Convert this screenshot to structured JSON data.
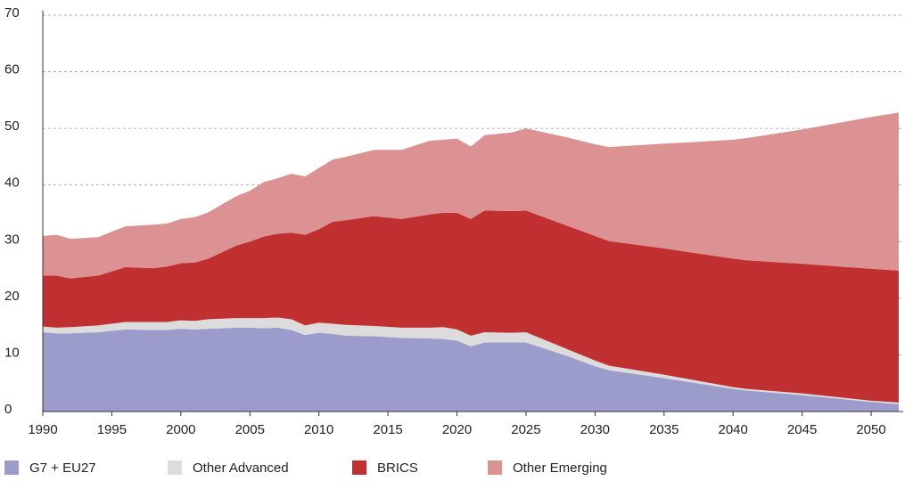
{
  "chart_data": {
    "type": "stacked_area",
    "x": [
      1990,
      1991,
      1992,
      1994,
      1996,
      1998,
      1999,
      2000,
      2001,
      2002,
      2004,
      2005,
      2006,
      2007,
      2008,
      2009,
      2010,
      2011,
      2012,
      2014,
      2016,
      2018,
      2019,
      2020,
      2021,
      2022,
      2024,
      2025,
      2028,
      2030,
      2031,
      2035,
      2040,
      2041,
      2045,
      2050,
      2052
    ],
    "series": [
      {
        "name": "G7 + EU27",
        "color": "#9b9bcc",
        "values": [
          14,
          13.8,
          13.8,
          14,
          14.5,
          14.4,
          14.4,
          14.6,
          14.5,
          14.6,
          14.8,
          14.8,
          14.7,
          14.8,
          14.4,
          13.5,
          13.9,
          13.7,
          13.4,
          13.3,
          13,
          12.9,
          12.8,
          12.5,
          11.5,
          12.2,
          12.2,
          12.2,
          9.8,
          8,
          7.3,
          5.9,
          4,
          3.7,
          2.9,
          1.7,
          1.3
        ]
      },
      {
        "name": "Other Advanced",
        "color": "#dcdcdc",
        "values": [
          1,
          1,
          1.1,
          1.2,
          1.3,
          1.4,
          1.4,
          1.5,
          1.5,
          1.7,
          1.7,
          1.7,
          1.8,
          1.8,
          1.9,
          1.7,
          1.8,
          1.8,
          1.9,
          1.8,
          1.8,
          1.9,
          2.1,
          2,
          1.9,
          1.8,
          1.7,
          1.8,
          1.2,
          1,
          0.8,
          0.6,
          0.3,
          0.3,
          0.3,
          0.2,
          0.3
        ]
      },
      {
        "name": "BRICS",
        "color": "#c03030",
        "values": [
          9,
          9.2,
          8.6,
          8.8,
          9.7,
          9.5,
          9.8,
          10.1,
          10.3,
          10.7,
          12.8,
          13.5,
          14.4,
          14.8,
          15.3,
          16,
          16.5,
          18,
          18.5,
          19.4,
          19.2,
          20,
          20.2,
          20.6,
          20.6,
          21.5,
          21.5,
          21.5,
          21.8,
          22,
          22,
          22.3,
          22.7,
          22.7,
          22.9,
          23.3,
          23.3
        ]
      },
      {
        "name": "Other Emerging",
        "color": "#dc9292",
        "values": [
          7,
          7.2,
          7,
          6.8,
          7.2,
          7.7,
          7.6,
          7.8,
          8,
          8.2,
          8.7,
          9,
          9.6,
          9.8,
          10.4,
          10.3,
          10.8,
          11,
          11.2,
          11.7,
          12.2,
          13,
          12.9,
          13.1,
          12.8,
          13.3,
          13.9,
          14.5,
          15.6,
          16.2,
          16.6,
          18.5,
          21,
          21.6,
          23.7,
          26.8,
          27.9
        ]
      }
    ],
    "xlim": [
      1990,
      2052
    ],
    "xticks": [
      1990,
      1995,
      2000,
      2005,
      2010,
      2015,
      2020,
      2025,
      2030,
      2035,
      2040,
      2045,
      2050
    ],
    "ylim": [
      0,
      70
    ],
    "yticks": [
      0,
      10,
      20,
      30,
      40,
      50,
      60,
      70
    ],
    "grid": true,
    "legend": "bottom"
  }
}
